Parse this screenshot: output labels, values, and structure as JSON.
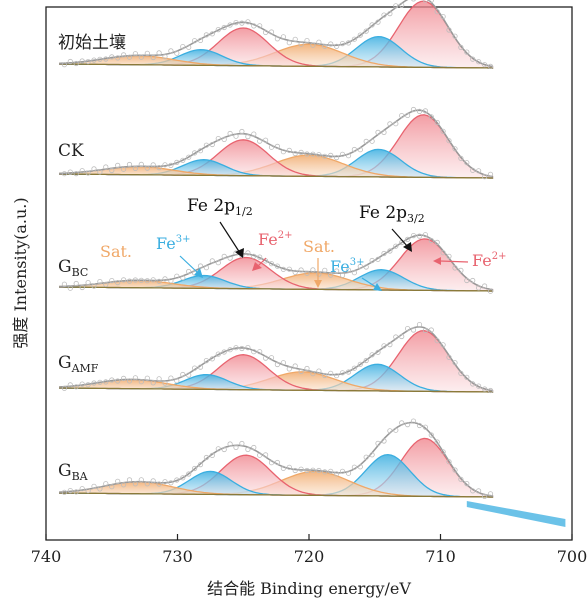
{
  "chart_data": {
    "type": "line",
    "title": "",
    "xlabel": "结合能 Binding energy/eV",
    "ylabel": "强度 Intensity(a.u.)",
    "xlim": [
      740,
      700
    ],
    "x_reversed": true,
    "x_ticks": [
      "740",
      "730",
      "720",
      "710",
      "700"
    ],
    "y_ticks": [],
    "grid": false,
    "samples": [
      {
        "name": "初始土壤",
        "peaks": [
          {
            "label": "Fe2+ 2p3/2",
            "component": "Fe2+",
            "center": 711.3,
            "height": 0.72,
            "width": 1.9
          },
          {
            "label": "Fe3+ 2p3/2",
            "component": "Fe3+",
            "center": 714.7,
            "height": 0.33,
            "width": 1.7
          },
          {
            "label": "Sat.",
            "component": "Sat.",
            "center": 720.0,
            "height": 0.24,
            "width": 2.6
          },
          {
            "label": "Fe2+ 2p1/2",
            "component": "Fe2+",
            "center": 725.0,
            "height": 0.41,
            "width": 1.9
          },
          {
            "label": "Fe3+ 2p1/2",
            "component": "Fe3+",
            "center": 728.2,
            "height": 0.17,
            "width": 1.6
          },
          {
            "label": "Sat.",
            "component": "Sat.",
            "center": 733.0,
            "height": 0.1,
            "width": 2.6
          }
        ]
      },
      {
        "name": "CK",
        "peaks": [
          {
            "label": "Fe2+ 2p3/2",
            "component": "Fe2+",
            "center": 711.3,
            "height": 0.68,
            "width": 1.9
          },
          {
            "label": "Fe3+ 2p3/2",
            "component": "Fe3+",
            "center": 714.7,
            "height": 0.3,
            "width": 1.7
          },
          {
            "label": "Sat.",
            "component": "Sat.",
            "center": 720.0,
            "height": 0.23,
            "width": 2.6
          },
          {
            "label": "Fe2+ 2p1/2",
            "component": "Fe2+",
            "center": 725.0,
            "height": 0.39,
            "width": 1.9
          },
          {
            "label": "Fe3+ 2p1/2",
            "component": "Fe3+",
            "center": 728.0,
            "height": 0.17,
            "width": 1.6
          },
          {
            "label": "Sat.",
            "component": "Sat.",
            "center": 733.0,
            "height": 0.09,
            "width": 2.6
          }
        ]
      },
      {
        "name": "G_BC",
        "peaks": [
          {
            "label": "Fe2+ 2p3/2",
            "component": "Fe2+",
            "center": 711.2,
            "height": 0.56,
            "width": 1.9
          },
          {
            "label": "Fe3+ 2p3/2",
            "component": "Fe3+",
            "center": 714.5,
            "height": 0.22,
            "width": 1.7
          },
          {
            "label": "Sat.",
            "component": "Sat.",
            "center": 719.5,
            "height": 0.18,
            "width": 2.5
          },
          {
            "label": "Fe2+ 2p1/2",
            "component": "Fe2+",
            "center": 724.8,
            "height": 0.34,
            "width": 1.9
          },
          {
            "label": "Fe3+ 2p1/2",
            "component": "Fe3+",
            "center": 728.0,
            "height": 0.14,
            "width": 1.6
          },
          {
            "label": "Sat.",
            "component": "Sat.",
            "center": 733.0,
            "height": 0.08,
            "width": 2.6
          }
        ]
      },
      {
        "name": "G_AMF",
        "peaks": [
          {
            "label": "Fe2+ 2p3/2",
            "component": "Fe2+",
            "center": 711.3,
            "height": 0.66,
            "width": 1.9
          },
          {
            "label": "Fe3+ 2p3/2",
            "component": "Fe3+",
            "center": 714.8,
            "height": 0.29,
            "width": 1.7
          },
          {
            "label": "Sat.",
            "component": "Sat.",
            "center": 720.5,
            "height": 0.2,
            "width": 2.5
          },
          {
            "label": "Fe2+ 2p1/2",
            "component": "Fe2+",
            "center": 725.0,
            "height": 0.38,
            "width": 1.9
          },
          {
            "label": "Fe3+ 2p1/2",
            "component": "Fe3+",
            "center": 727.8,
            "height": 0.16,
            "width": 1.6
          },
          {
            "label": "Sat.",
            "component": "Sat.",
            "center": 733.5,
            "height": 0.1,
            "width": 2.6
          }
        ]
      },
      {
        "name": "G_BA",
        "peaks": [
          {
            "label": "Fe2+ 2p3/2",
            "component": "Fe2+",
            "center": 711.2,
            "height": 0.63,
            "width": 1.8
          },
          {
            "label": "Fe3+ 2p3/2",
            "component": "Fe3+",
            "center": 714.0,
            "height": 0.45,
            "width": 1.7
          },
          {
            "label": "Sat.",
            "component": "Sat.",
            "center": 719.5,
            "height": 0.26,
            "width": 2.6
          },
          {
            "label": "Fe2+ 2p1/2",
            "component": "Fe2+",
            "center": 724.8,
            "height": 0.43,
            "width": 1.9
          },
          {
            "label": "Fe3+ 2p1/2",
            "component": "Fe3+",
            "center": 727.5,
            "height": 0.25,
            "width": 1.6
          },
          {
            "label": "Sat.",
            "component": "Sat.",
            "center": 733.0,
            "height": 0.13,
            "width": 2.6
          }
        ]
      }
    ],
    "colors": {
      "Fe2+": "#e8636f",
      "Fe3+": "#3aaee0",
      "Sat.": "#f0a868",
      "baseline": "#8a7a3a",
      "envelope": "#999999"
    }
  },
  "sample_labels": {
    "s0": "初始土壤",
    "s1": "CK",
    "s2_main": "G",
    "s2_sub": "BC",
    "s3_main": "G",
    "s3_sub": "AMF",
    "s4_main": "G",
    "s4_sub": "BA"
  },
  "annotations": {
    "fe2p12_main": "Fe 2p",
    "fe2p12_sub": "1/2",
    "fe2p32_main": "Fe 2p",
    "fe2p32_sub": "3/2",
    "sat": "Sat.",
    "fe_main": "Fe",
    "fe3_sup": "3+",
    "fe2_sup": "2+"
  }
}
